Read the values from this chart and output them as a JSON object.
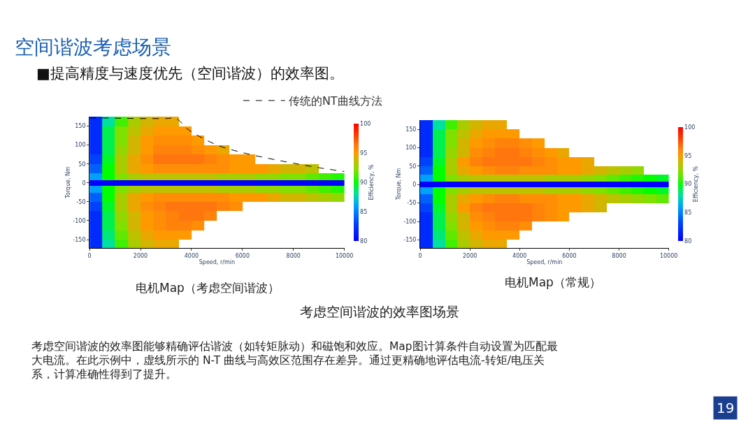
{
  "chart_data": [
    {
      "type": "heatmap",
      "title": "空间谐波考虑场景",
      "subtitle": "■提高精度与速度优先（空间谐波）的效率图。",
      "xlabel": "Speed, r/min",
      "ylabel": "Torque, Nm",
      "clabel": "Efficiency, %",
      "x": [
        250,
        750,
        1250,
        1750,
        2250,
        2750,
        3250,
        3750,
        4250,
        4750,
        5250,
        5750,
        6250,
        6750,
        7250,
        7750,
        8250,
        8750,
        9250,
        9750
      ],
      "y": [
        162.5,
        137.5,
        112.5,
        87.5,
        62.5,
        37.5,
        15,
        0,
        -15,
        -37.5,
        -62.5,
        -87.5,
        -112.5,
        -137.5,
        -162.5
      ],
      "cells": [
        [
          82,
          88,
          91,
          93,
          94,
          94.5,
          94.5,
          null,
          null,
          null,
          null,
          null,
          null,
          null,
          null,
          null,
          null,
          null,
          null,
          null
        ],
        [
          82,
          89,
          92,
          93.5,
          94.5,
          95,
          95,
          95,
          null,
          null,
          null,
          null,
          null,
          null,
          null,
          null,
          null,
          null,
          null,
          null
        ],
        [
          82,
          89,
          92,
          94,
          95,
          95.5,
          95.5,
          95.5,
          95,
          null,
          null,
          null,
          null,
          null,
          null,
          null,
          null,
          null,
          null,
          null
        ],
        [
          82,
          89,
          92.5,
          94,
          95,
          96,
          96,
          96,
          95.5,
          95,
          94.5,
          null,
          null,
          null,
          null,
          null,
          null,
          null,
          null,
          null
        ],
        [
          83,
          89.5,
          93,
          94.5,
          95.5,
          96.5,
          96.5,
          96.5,
          96.5,
          96,
          95.5,
          95,
          95,
          null,
          null,
          null,
          null,
          null,
          null,
          null
        ],
        [
          84,
          90,
          93,
          94.5,
          95,
          95.5,
          95.5,
          95.5,
          95.5,
          95.5,
          95.5,
          95,
          95,
          95,
          94.5,
          94,
          94,
          93.5,
          null,
          null
        ],
        [
          86,
          90,
          92,
          93,
          93.5,
          93.5,
          93.5,
          93.5,
          93.5,
          93.5,
          93,
          93,
          93,
          92.5,
          92.5,
          92,
          92,
          91.5,
          91,
          90.5
        ],
        [
          80,
          80,
          80,
          80,
          80,
          80,
          80,
          80,
          80,
          80,
          80,
          80,
          80,
          80,
          80,
          80,
          80,
          80,
          80,
          80
        ],
        [
          86,
          90,
          92,
          93,
          93.5,
          93.5,
          93.5,
          93.5,
          93.5,
          93.5,
          93,
          93,
          93,
          92.5,
          92.5,
          92,
          92,
          91.5,
          91,
          90.5
        ],
        [
          84,
          90,
          93,
          94.5,
          95,
          95.5,
          95.5,
          95.5,
          95.5,
          95.5,
          95.5,
          95,
          95,
          95,
          94.5,
          94,
          94,
          93.5,
          93,
          92.5
        ],
        [
          83,
          89.5,
          93,
          94.5,
          95.5,
          96,
          96.5,
          96.5,
          96.5,
          96.5,
          96,
          95.5,
          null,
          null,
          null,
          null,
          null,
          null,
          null,
          null
        ],
        [
          82,
          89,
          92.5,
          94,
          95,
          95.5,
          96,
          96.5,
          96.5,
          96,
          null,
          null,
          null,
          null,
          null,
          null,
          null,
          null,
          null,
          null
        ],
        [
          82,
          89,
          92,
          94,
          95,
          95.5,
          96,
          96,
          95.5,
          null,
          null,
          null,
          null,
          null,
          null,
          null,
          null,
          null,
          null,
          null
        ],
        [
          82,
          88.5,
          91.5,
          93.5,
          94.5,
          95,
          95,
          95,
          null,
          null,
          null,
          null,
          null,
          null,
          null,
          null,
          null,
          null,
          null,
          null
        ],
        [
          82,
          88,
          91,
          93,
          94,
          94.5,
          94.5,
          null,
          null,
          null,
          null,
          null,
          null,
          null,
          null,
          null,
          null,
          null,
          null,
          null
        ]
      ],
      "series": [
        {
          "type": "line",
          "name": "传统的NT曲线方法",
          "color": "#000000",
          "line_style": "dashed",
          "x": [
            0,
            1000,
            2000,
            3000,
            3400,
            3800,
            4000,
            5000,
            6000,
            7000,
            8000,
            9000,
            10000
          ],
          "values": [
            172,
            171,
            170,
            170,
            170,
            145,
            135,
            100,
            80,
            65,
            52,
            40,
            30
          ]
        }
      ],
      "legend": "top",
      "xlim": [
        0,
        10000
      ],
      "ylim": [
        -172,
        175
      ],
      "xticks": [
        0,
        2000,
        4000,
        6000,
        8000,
        10000
      ],
      "yticks": [
        -150,
        -100,
        -50,
        0,
        50,
        100,
        150
      ],
      "clim": [
        80,
        100
      ],
      "cticks": [
        80,
        85,
        90,
        95,
        100
      ],
      "annotations": [
        "电机Map（考虑空间谐波）",
        "考虑空间谐波的效率图场景",
        "考虑空间谐波的效率图能够精确评估谐波（如转矩脉动）和磁饱和效应。Map图计算条件自动设置为匹配最大电流。在此示例中，虚线所示的 N-T 曲线与高效区范围存在差异。通过更精确地评估电流-转矩/电压关系，计算准确性得到了提升。",
        "19"
      ]
    },
    {
      "type": "heatmap",
      "xlabel": "Speed, r/min",
      "ylabel": "Torque, Nm",
      "clabel": "Efficiency, %",
      "x": [
        250,
        750,
        1250,
        1750,
        2250,
        2750,
        3250,
        3750,
        4250,
        4750,
        5250,
        5750,
        6250,
        6750,
        7250,
        7750,
        8250,
        8750,
        9250,
        9750
      ],
      "y": [
        162.5,
        137.5,
        112.5,
        87.5,
        62.5,
        37.5,
        15,
        0,
        -15,
        -37.5,
        -62.5,
        -87.5,
        -112.5,
        -137.5,
        -162.5
      ],
      "cells": [
        [
          82,
          88,
          91,
          93,
          94,
          94.5,
          94.5,
          null,
          null,
          null,
          null,
          null,
          null,
          null,
          null,
          null,
          null,
          null,
          null,
          null
        ],
        [
          82,
          89,
          92,
          93.5,
          94.5,
          95,
          95,
          95,
          null,
          null,
          null,
          null,
          null,
          null,
          null,
          null,
          null,
          null,
          null,
          null
        ],
        [
          82,
          89,
          92,
          94,
          95,
          95.5,
          96,
          96,
          95.5,
          95,
          null,
          null,
          null,
          null,
          null,
          null,
          null,
          null,
          null,
          null
        ],
        [
          82,
          89,
          92.5,
          94,
          95.5,
          96,
          96.5,
          96.5,
          96,
          95.5,
          95,
          94.5,
          null,
          null,
          null,
          null,
          null,
          null,
          null,
          null
        ],
        [
          83,
          89.5,
          93,
          95,
          96,
          96.5,
          96.5,
          96.5,
          96.5,
          96,
          95.5,
          95,
          95,
          94.5,
          null,
          null,
          null,
          null,
          null,
          null
        ],
        [
          84,
          90,
          93,
          94.5,
          95,
          95.5,
          96,
          96,
          95.5,
          95.5,
          95.5,
          95,
          95,
          94.5,
          94,
          93.5,
          93,
          92.5,
          null,
          null
        ],
        [
          86,
          90,
          92,
          93,
          93.5,
          93.5,
          93.5,
          93.5,
          93.5,
          93.5,
          93,
          93,
          93,
          92.5,
          92,
          91.5,
          91,
          90.5,
          90,
          89.5
        ],
        [
          80,
          80,
          80,
          80,
          80,
          80,
          80,
          80,
          80,
          80,
          80,
          80,
          80,
          80,
          80,
          80,
          80,
          80,
          80,
          80
        ],
        [
          86,
          90,
          92,
          93,
          93.5,
          93.5,
          93.5,
          93.5,
          93.5,
          93.5,
          93,
          93,
          93,
          92.5,
          92,
          91.5,
          91,
          90.5,
          90,
          89.5
        ],
        [
          84,
          90,
          93,
          94.5,
          95,
          95.5,
          96,
          96,
          95.5,
          95.5,
          95.5,
          95,
          95,
          94.5,
          94,
          93.5,
          93,
          92.5,
          92,
          91.5
        ],
        [
          83,
          89.5,
          93,
          95,
          96,
          96.5,
          96.5,
          96.5,
          96.5,
          96,
          95.5,
          95,
          95,
          94.5,
          94,
          null,
          null,
          null,
          null,
          null
        ],
        [
          82,
          89,
          92.5,
          94,
          95.5,
          96,
          96.5,
          96.5,
          96.5,
          96,
          95.5,
          95,
          null,
          null,
          null,
          null,
          null,
          null,
          null,
          null
        ],
        [
          82,
          89,
          92,
          94,
          95,
          95.5,
          96,
          96,
          95.5,
          null,
          null,
          null,
          null,
          null,
          null,
          null,
          null,
          null,
          null,
          null
        ],
        [
          82,
          88.5,
          91.5,
          93.5,
          94.5,
          95,
          95,
          95,
          null,
          null,
          null,
          null,
          null,
          null,
          null,
          null,
          null,
          null,
          null,
          null
        ],
        [
          82,
          88,
          91,
          93,
          94,
          94.5,
          94.5,
          null,
          null,
          null,
          null,
          null,
          null,
          null,
          null,
          null,
          null,
          null,
          null,
          null
        ]
      ],
      "xlim": [
        0,
        10000
      ],
      "ylim": [
        -172,
        175
      ],
      "xticks": [
        0,
        2000,
        4000,
        6000,
        8000,
        10000
      ],
      "yticks": [
        -150,
        -100,
        -50,
        0,
        50,
        100,
        150
      ],
      "clim": [
        80,
        100
      ],
      "cticks": [
        80,
        85,
        90,
        95,
        100
      ],
      "annotations": [
        "电机Map（常规）"
      ]
    }
  ]
}
